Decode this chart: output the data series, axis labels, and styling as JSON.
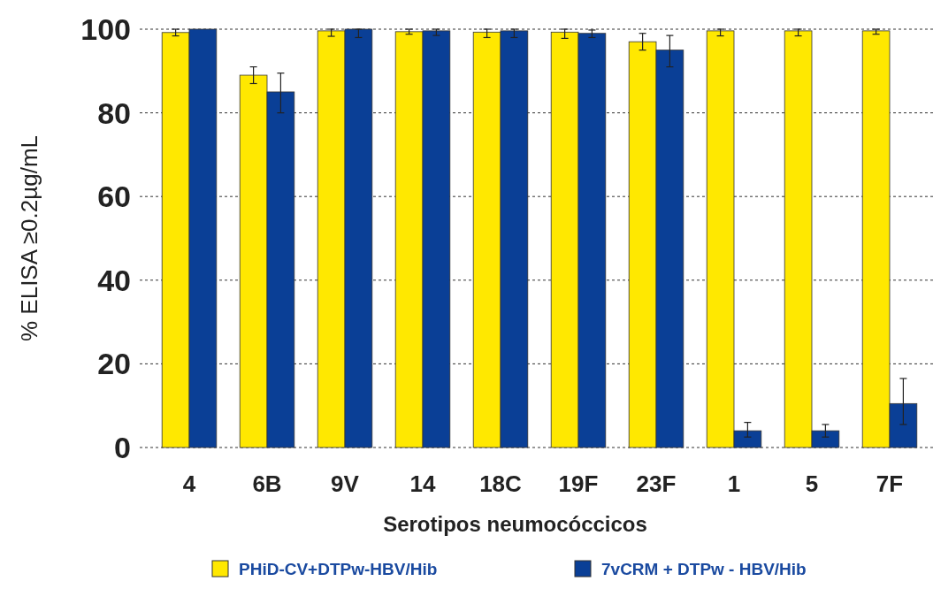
{
  "chart_data": {
    "type": "bar",
    "xlabel": "Serotipos neumocóccicos",
    "ylabel": "% ELISA ≥0.2µg/mL",
    "categories": [
      "4",
      "6B",
      "9V",
      "14",
      "18C",
      "19F",
      "23F",
      "1",
      "5",
      "7F"
    ],
    "series": [
      {
        "name": "PHiD-CV+DTPw-HBV/Hib",
        "color": "#ffe800",
        "values": [
          99.2,
          89,
          99.6,
          99.4,
          99.3,
          99.3,
          97,
          99.6,
          99.6,
          99.6
        ],
        "errors": [
          [
            98.4,
            100
          ],
          [
            87,
            91
          ],
          [
            98.3,
            100
          ],
          [
            98.8,
            100
          ],
          [
            98,
            100
          ],
          [
            97.8,
            100
          ],
          [
            95,
            99
          ],
          [
            98.4,
            100
          ],
          [
            98.4,
            100
          ],
          [
            98.8,
            100
          ]
        ]
      },
      {
        "name": "7vCRM + DTPw - HBV/Hib",
        "color": "#0a3f96",
        "values": [
          100,
          85,
          100,
          99.6,
          99.6,
          99,
          95,
          4,
          4,
          10.5
        ],
        "errors": [
          null,
          [
            80,
            89.5
          ],
          [
            98,
            100
          ],
          [
            98.5,
            100
          ],
          [
            98,
            100
          ],
          [
            98,
            99.8
          ],
          [
            91,
            98.5
          ],
          [
            2.5,
            6
          ],
          [
            2.5,
            5.5
          ],
          [
            5.5,
            16.5
          ]
        ]
      }
    ],
    "ylim": [
      0,
      100
    ],
    "yticks": [
      0,
      20,
      40,
      60,
      80,
      100
    ],
    "grid": "y",
    "legend": "bottom"
  }
}
